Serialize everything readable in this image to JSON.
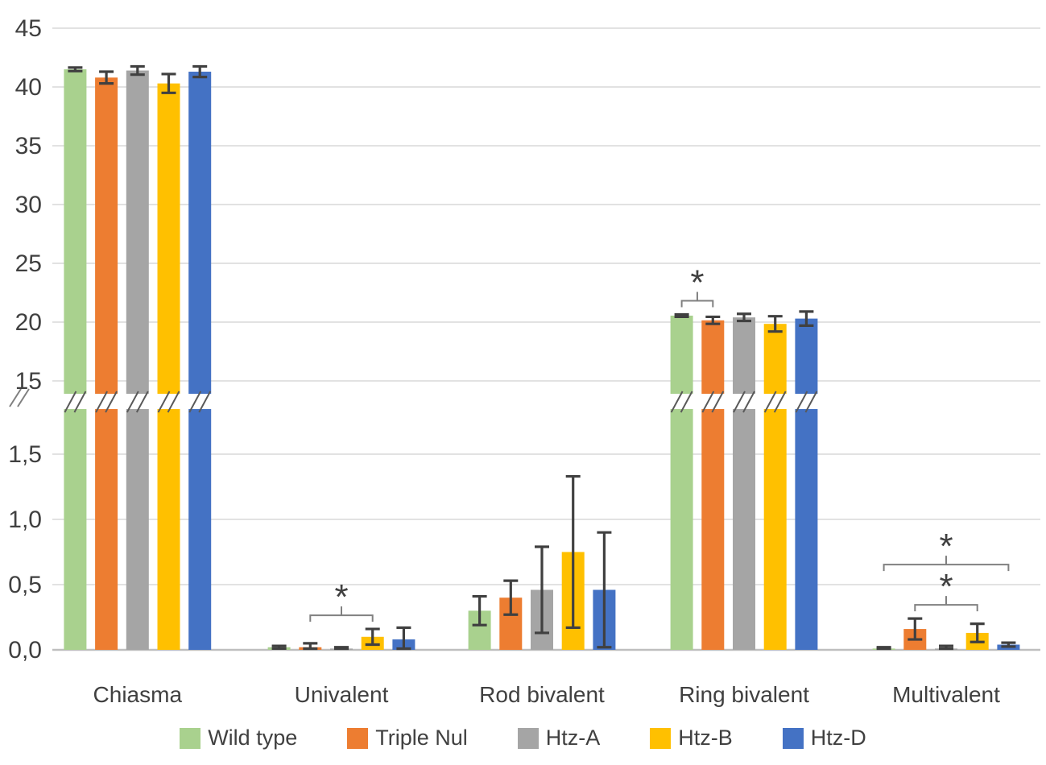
{
  "chart_data": {
    "type": "bar",
    "title": "",
    "categories": [
      "Chiasma",
      "Univalent",
      "Rod bivalent",
      "Ring bivalent",
      "Multivalent"
    ],
    "series": [
      {
        "name": "Wild type",
        "color": "#A9D18E",
        "values": [
          41.5,
          0.02,
          0.3,
          20.55,
          0.01
        ],
        "errors": [
          0.15,
          0.01,
          0.11,
          0.1,
          0.01
        ]
      },
      {
        "name": "Triple Nul",
        "color": "#ED7D31",
        "values": [
          40.8,
          0.02,
          0.4,
          20.15,
          0.16
        ],
        "errors": [
          0.5,
          0.03,
          0.13,
          0.3,
          0.08
        ]
      },
      {
        "name": "Htz-A",
        "color": "#A5A5A5",
        "values": [
          41.4,
          0.01,
          0.46,
          20.4,
          0.01
        ],
        "errors": [
          0.35,
          0.01,
          0.33,
          0.3,
          0.02
        ]
      },
      {
        "name": "Htz-B",
        "color": "#FFC000",
        "values": [
          40.3,
          0.1,
          0.75,
          19.85,
          0.13
        ],
        "errors": [
          0.8,
          0.06,
          0.58,
          0.65,
          0.07
        ]
      },
      {
        "name": "Htz-D",
        "color": "#4472C4",
        "values": [
          41.3,
          0.08,
          0.46,
          20.3,
          0.04
        ],
        "errors": [
          0.45,
          0.09,
          0.44,
          0.6,
          0.015
        ]
      }
    ],
    "y_axis": {
      "broken_axis": true,
      "break_symbol": "//",
      "upper_range": [
        15,
        45
      ],
      "upper_tick_labels": [
        "45",
        "40",
        "35",
        "30",
        "25",
        "20",
        "15"
      ],
      "upper_tick_values": [
        45,
        40,
        35,
        30,
        25,
        20,
        15
      ],
      "lower_range": [
        0,
        1.5
      ],
      "lower_tick_labels": [
        "1,5",
        "1,0",
        "0,5",
        "0,0"
      ],
      "lower_tick_values": [
        1.5,
        1.0,
        0.5,
        0.0
      ],
      "decimal_separator": ","
    },
    "grid": true,
    "legend_position": "bottom",
    "significance": [
      {
        "category": "Univalent",
        "from": "Triple Nul",
        "to": "Htz-B",
        "symbol": "*",
        "level": 1
      },
      {
        "category": "Ring bivalent",
        "from": "Wild type",
        "to": "Triple Nul",
        "symbol": "*",
        "level": 1
      },
      {
        "category": "Multivalent",
        "from": "Triple Nul",
        "to": "Htz-B",
        "symbol": "*",
        "level": 1
      },
      {
        "category": "Multivalent",
        "from": "Wild type",
        "to": "Htz-D",
        "symbol": "*",
        "level": 2
      }
    ],
    "colors": {
      "text": "#404040",
      "gridline": "#D9D9D9",
      "baseline": "#BFBFBF",
      "error_bar": "#404040",
      "bracket": "#808080",
      "break_slash": "#595959",
      "axis_break": "#808080"
    }
  }
}
